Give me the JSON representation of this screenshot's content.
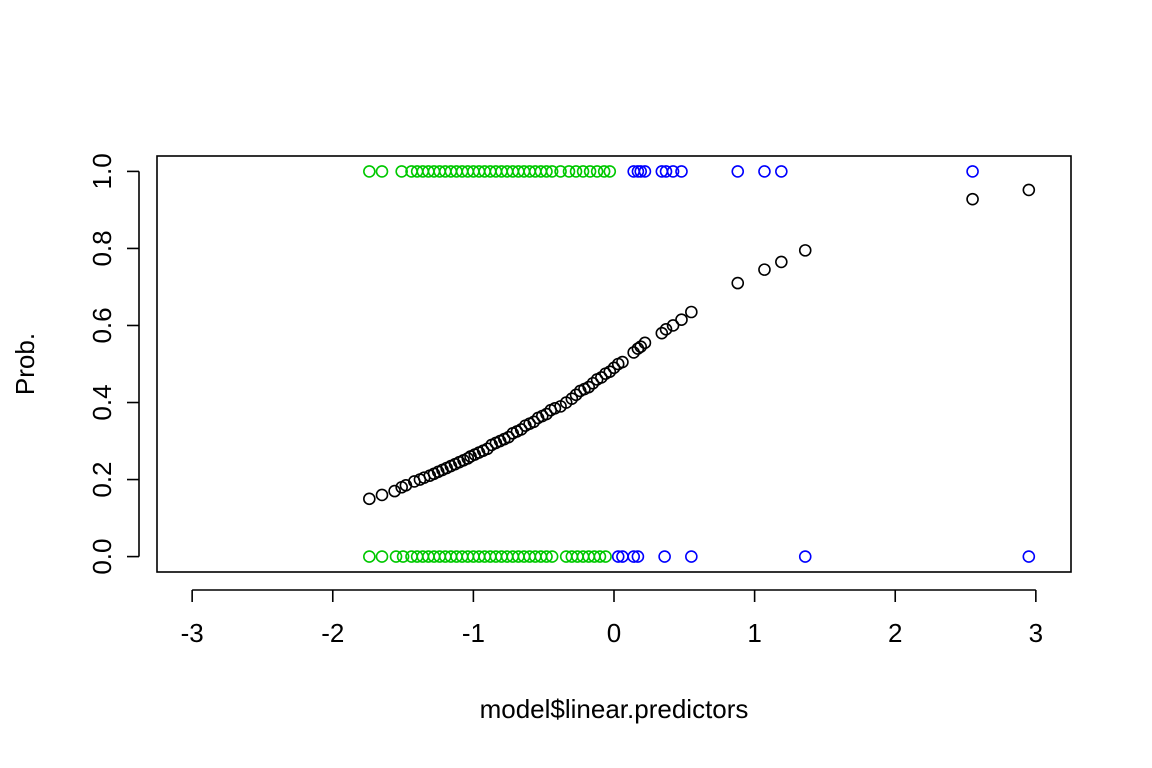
{
  "chart_data": {
    "type": "scatter",
    "title": "",
    "xlabel": "model$linear.predictors",
    "ylabel": "Prob.",
    "xlim": [
      -3.25,
      3.25
    ],
    "ylim": [
      -0.04,
      1.04
    ],
    "xticks": [
      -3,
      -2,
      -1,
      0,
      1,
      2,
      3
    ],
    "xtick_labels": [
      "-3",
      "-2",
      "-1",
      "0",
      "1",
      "2",
      "3"
    ],
    "yticks": [
      0.0,
      0.2,
      0.4,
      0.6,
      0.8,
      1.0
    ],
    "ytick_labels": [
      "0.0",
      "0.2",
      "0.4",
      "0.6",
      "0.8",
      "1.0"
    ],
    "grid": false,
    "legend": "none",
    "colors": {
      "fitted": "#000000",
      "negative_outcome": "#00c800",
      "positive_outcome": "#0000ff"
    },
    "series": [
      {
        "marker": "open-circle",
        "color": "#000000",
        "points": [
          [
            -1.74,
            0.15
          ],
          [
            -1.65,
            0.16
          ],
          [
            -1.56,
            0.17
          ],
          [
            -1.51,
            0.18
          ],
          [
            -1.48,
            0.185
          ],
          [
            -1.42,
            0.195
          ],
          [
            -1.38,
            0.2
          ],
          [
            -1.35,
            0.205
          ],
          [
            -1.31,
            0.21
          ],
          [
            -1.28,
            0.215
          ],
          [
            -1.25,
            0.22
          ],
          [
            -1.22,
            0.225
          ],
          [
            -1.19,
            0.23
          ],
          [
            -1.16,
            0.235
          ],
          [
            -1.13,
            0.24
          ],
          [
            -1.1,
            0.245
          ],
          [
            -1.07,
            0.25
          ],
          [
            -1.04,
            0.255
          ],
          [
            -1.02,
            0.26
          ],
          [
            -0.99,
            0.265
          ],
          [
            -0.96,
            0.27
          ],
          [
            -0.93,
            0.275
          ],
          [
            -0.9,
            0.28
          ],
          [
            -0.87,
            0.29
          ],
          [
            -0.84,
            0.295
          ],
          [
            -0.81,
            0.3
          ],
          [
            -0.78,
            0.305
          ],
          [
            -0.75,
            0.31
          ],
          [
            -0.72,
            0.32
          ],
          [
            -0.69,
            0.325
          ],
          [
            -0.66,
            0.33
          ],
          [
            -0.63,
            0.34
          ],
          [
            -0.6,
            0.345
          ],
          [
            -0.57,
            0.35
          ],
          [
            -0.54,
            0.36
          ],
          [
            -0.51,
            0.365
          ],
          [
            -0.48,
            0.37
          ],
          [
            -0.45,
            0.38
          ],
          [
            -0.42,
            0.385
          ],
          [
            -0.38,
            0.39
          ],
          [
            -0.34,
            0.4
          ],
          [
            -0.3,
            0.41
          ],
          [
            -0.27,
            0.42
          ],
          [
            -0.24,
            0.43
          ],
          [
            -0.21,
            0.435
          ],
          [
            -0.18,
            0.44
          ],
          [
            -0.15,
            0.45
          ],
          [
            -0.12,
            0.46
          ],
          [
            -0.09,
            0.465
          ],
          [
            -0.06,
            0.475
          ],
          [
            -0.03,
            0.48
          ],
          [
            0.0,
            0.49
          ],
          [
            0.03,
            0.5
          ],
          [
            0.06,
            0.505
          ],
          [
            0.14,
            0.53
          ],
          [
            0.17,
            0.54
          ],
          [
            0.19,
            0.545
          ],
          [
            0.22,
            0.555
          ],
          [
            0.34,
            0.58
          ],
          [
            0.37,
            0.59
          ],
          [
            0.42,
            0.6
          ],
          [
            0.48,
            0.615
          ],
          [
            0.55,
            0.635
          ],
          [
            0.88,
            0.71
          ],
          [
            1.07,
            0.745
          ],
          [
            1.19,
            0.765
          ],
          [
            1.36,
            0.795
          ],
          [
            2.55,
            0.928
          ],
          [
            2.95,
            0.952
          ]
        ]
      },
      {
        "marker": "open-circle",
        "color": "#00c800",
        "points": [
          [
            -1.74,
            1
          ],
          [
            -1.65,
            1
          ],
          [
            -1.51,
            1
          ],
          [
            -1.44,
            1
          ],
          [
            -1.4,
            1
          ],
          [
            -1.36,
            1
          ],
          [
            -1.32,
            1
          ],
          [
            -1.28,
            1
          ],
          [
            -1.24,
            1
          ],
          [
            -1.2,
            1
          ],
          [
            -1.16,
            1
          ],
          [
            -1.12,
            1
          ],
          [
            -1.08,
            1
          ],
          [
            -1.04,
            1
          ],
          [
            -1.0,
            1
          ],
          [
            -0.96,
            1
          ],
          [
            -0.92,
            1
          ],
          [
            -0.88,
            1
          ],
          [
            -0.84,
            1
          ],
          [
            -0.8,
            1
          ],
          [
            -0.76,
            1
          ],
          [
            -0.72,
            1
          ],
          [
            -0.68,
            1
          ],
          [
            -0.64,
            1
          ],
          [
            -0.6,
            1
          ],
          [
            -0.56,
            1
          ],
          [
            -0.52,
            1
          ],
          [
            -0.48,
            1
          ],
          [
            -0.44,
            1
          ],
          [
            -0.38,
            1
          ],
          [
            -0.32,
            1
          ],
          [
            -0.27,
            1
          ],
          [
            -0.22,
            1
          ],
          [
            -0.17,
            1
          ],
          [
            -0.12,
            1
          ],
          [
            -0.07,
            1
          ],
          [
            -0.03,
            1
          ],
          [
            -1.74,
            0
          ],
          [
            -1.65,
            0
          ],
          [
            -1.55,
            0
          ],
          [
            -1.5,
            0
          ],
          [
            -1.44,
            0
          ],
          [
            -1.4,
            0
          ],
          [
            -1.36,
            0
          ],
          [
            -1.32,
            0
          ],
          [
            -1.28,
            0
          ],
          [
            -1.24,
            0
          ],
          [
            -1.2,
            0
          ],
          [
            -1.16,
            0
          ],
          [
            -1.12,
            0
          ],
          [
            -1.08,
            0
          ],
          [
            -1.04,
            0
          ],
          [
            -1.0,
            0
          ],
          [
            -0.96,
            0
          ],
          [
            -0.92,
            0
          ],
          [
            -0.88,
            0
          ],
          [
            -0.84,
            0
          ],
          [
            -0.8,
            0
          ],
          [
            -0.76,
            0
          ],
          [
            -0.72,
            0
          ],
          [
            -0.68,
            0
          ],
          [
            -0.64,
            0
          ],
          [
            -0.6,
            0
          ],
          [
            -0.56,
            0
          ],
          [
            -0.52,
            0
          ],
          [
            -0.48,
            0
          ],
          [
            -0.44,
            0
          ],
          [
            -0.34,
            0
          ],
          [
            -0.3,
            0
          ],
          [
            -0.26,
            0
          ],
          [
            -0.22,
            0
          ],
          [
            -0.18,
            0
          ],
          [
            -0.14,
            0
          ],
          [
            -0.1,
            0
          ],
          [
            -0.06,
            0
          ]
        ]
      },
      {
        "marker": "open-circle",
        "color": "#0000ff",
        "points": [
          [
            0.14,
            1
          ],
          [
            0.17,
            1
          ],
          [
            0.19,
            1
          ],
          [
            0.22,
            1
          ],
          [
            0.34,
            1
          ],
          [
            0.37,
            1
          ],
          [
            0.42,
            1
          ],
          [
            0.48,
            1
          ],
          [
            0.88,
            1
          ],
          [
            1.07,
            1
          ],
          [
            1.19,
            1
          ],
          [
            2.55,
            1
          ],
          [
            0.03,
            0
          ],
          [
            0.06,
            0
          ],
          [
            0.14,
            0
          ],
          [
            0.17,
            0
          ],
          [
            0.36,
            0
          ],
          [
            0.55,
            0
          ],
          [
            1.36,
            0
          ],
          [
            2.95,
            0
          ]
        ]
      }
    ]
  }
}
